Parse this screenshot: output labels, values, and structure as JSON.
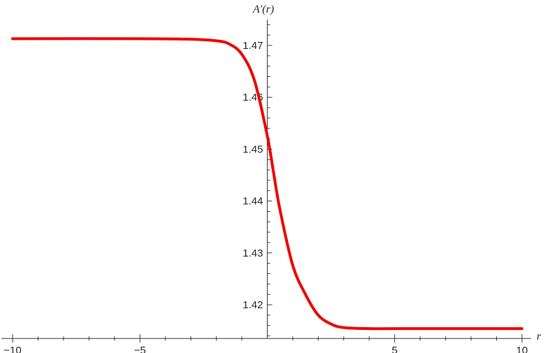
{
  "chart_data": {
    "type": "line",
    "title": "",
    "xlabel": "r",
    "ylabel": "A′(r)",
    "xlim": [
      -10,
      10
    ],
    "ylim": [
      1.4135,
      1.4755
    ],
    "x_ticks": [
      -10,
      -5,
      5,
      10
    ],
    "x_tick_labels": [
      "−10",
      "−5",
      "5",
      "10"
    ],
    "y_ticks": [
      1.42,
      1.43,
      1.44,
      1.45,
      1.46,
      1.47
    ],
    "y_tick_labels": [
      "1.42",
      "1.43",
      "1.44",
      "1.45",
      "1.46",
      "1.47"
    ],
    "grid": false,
    "series": [
      {
        "color": "#ee0000",
        "x": [
          -10,
          -5,
          -3,
          -2,
          -1.5,
          -1,
          -0.5,
          0,
          0.25,
          0.5,
          1,
          1.5,
          2,
          2.5,
          3,
          4,
          5,
          10
        ],
        "y": [
          1.4713,
          1.4713,
          1.4712,
          1.4709,
          1.4703,
          1.4683,
          1.4632,
          1.4526,
          1.4454,
          1.4383,
          1.4276,
          1.422,
          1.418,
          1.4163,
          1.4156,
          1.4154,
          1.4154,
          1.4154
        ]
      }
    ]
  }
}
